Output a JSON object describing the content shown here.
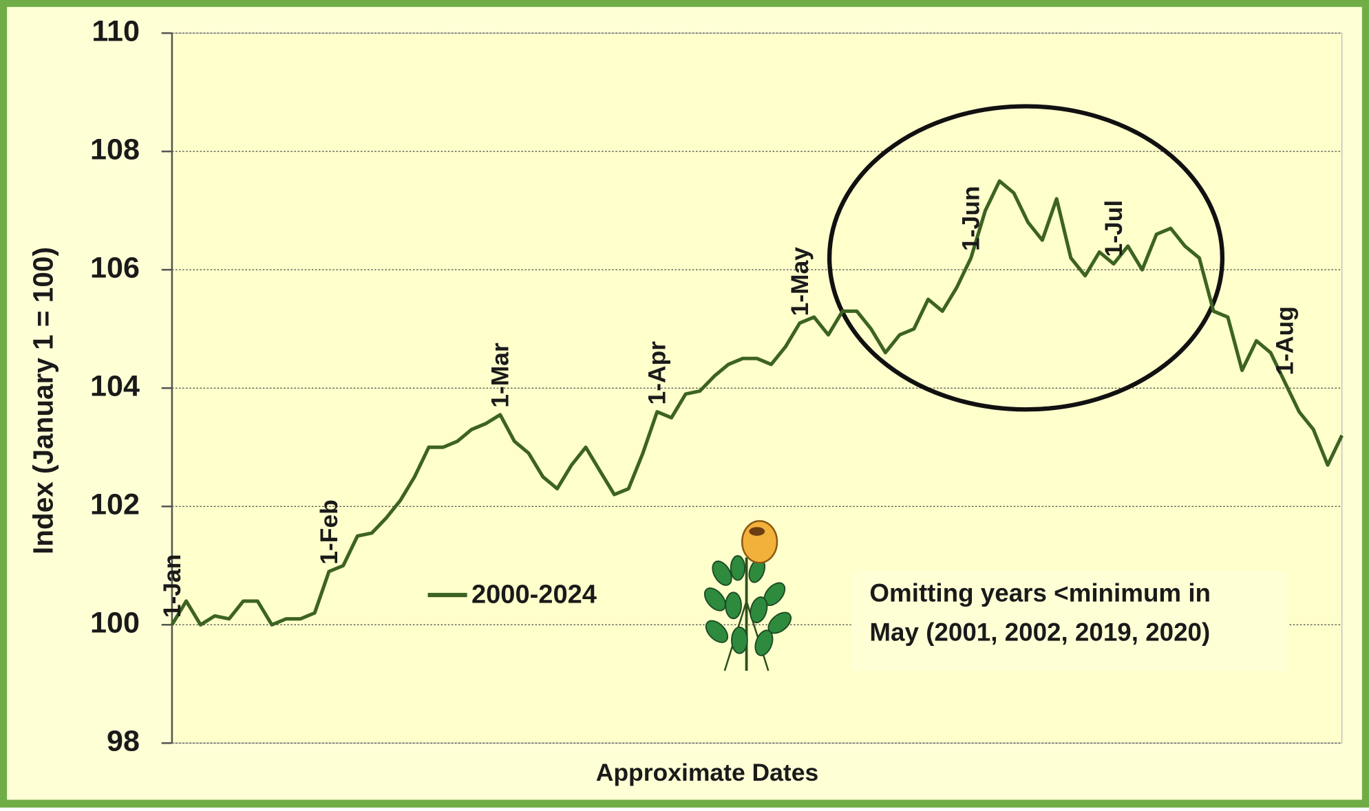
{
  "chart_data": {
    "type": "line",
    "y_label": "Index (January 1 = 100)",
    "x_label": "Approximate Dates",
    "categories": [
      "1-Jan",
      null,
      null,
      null,
      null,
      null,
      null,
      null,
      null,
      null,
      null,
      "1-Feb",
      null,
      null,
      null,
      null,
      null,
      null,
      null,
      null,
      null,
      null,
      null,
      "1-Mar",
      null,
      null,
      null,
      null,
      null,
      null,
      null,
      null,
      null,
      null,
      "1-Apr",
      null,
      null,
      null,
      null,
      null,
      null,
      null,
      null,
      null,
      "1-May",
      null,
      null,
      null,
      null,
      null,
      null,
      null,
      null,
      null,
      null,
      null,
      "1-Jun",
      null,
      null,
      null,
      null,
      null,
      null,
      null,
      null,
      null,
      "1-Jul",
      null,
      null,
      null,
      null,
      null,
      null,
      null,
      null,
      null,
      null,
      null,
      "1-Aug",
      null,
      null,
      null,
      null
    ],
    "series": [
      {
        "name": "2000-2024",
        "color": "#3d6322",
        "values": [
          100.0,
          100.4,
          100.0,
          100.15,
          100.1,
          100.4,
          100.4,
          100.0,
          100.1,
          100.1,
          100.2,
          100.9,
          101.0,
          101.5,
          101.55,
          101.8,
          102.1,
          102.5,
          103.0,
          103.0,
          103.1,
          103.3,
          103.4,
          103.55,
          103.1,
          102.9,
          102.5,
          102.3,
          102.7,
          103.0,
          102.6,
          102.2,
          102.3,
          102.9,
          103.6,
          103.5,
          103.9,
          103.95,
          104.2,
          104.4,
          104.5,
          104.5,
          104.4,
          104.7,
          105.1,
          105.2,
          104.9,
          105.3,
          105.3,
          105.0,
          104.6,
          104.9,
          105.0,
          105.5,
          105.3,
          105.7,
          106.2,
          107.0,
          107.5,
          107.3,
          106.8,
          106.5,
          107.2,
          106.2,
          105.9,
          106.3,
          106.1,
          106.4,
          106.0,
          106.6,
          106.7,
          106.4,
          106.2,
          105.3,
          105.2,
          104.3,
          104.8,
          104.6,
          104.1,
          103.6,
          103.3,
          102.7,
          103.2
        ]
      }
    ],
    "ylim": [
      98,
      110
    ],
    "yticks": [
      98,
      100,
      102,
      104,
      106,
      108,
      110
    ],
    "grid": true,
    "annotation": [
      "Omitting years <minimum in",
      "May (2001, 2002, 2019, 2020)"
    ]
  }
}
